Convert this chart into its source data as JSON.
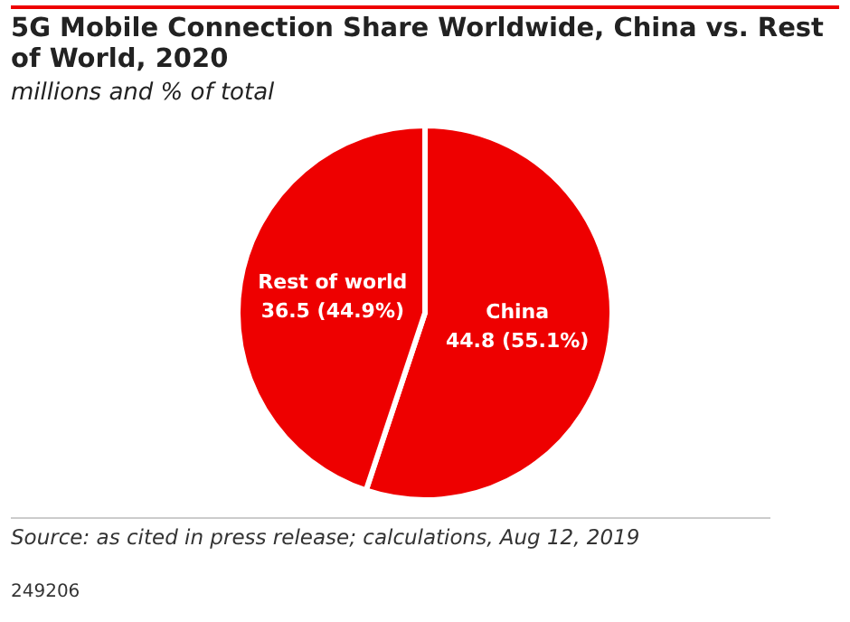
{
  "chart_data": {
    "type": "pie",
    "title": "5G Mobile Connection Share Worldwide, China vs. Rest of World, 2020",
    "subtitle": "millions and % of total",
    "categories": [
      "China",
      "Rest of world"
    ],
    "values": [
      44.8,
      36.5
    ],
    "colors": [
      "#ee0000",
      "#ee0000"
    ],
    "value_labels": [
      "44.8 (55.1%)",
      "36.5 (44.9%)"
    ],
    "legend": false,
    "annotations": [
      "Source: as cited in press release; calculations, Aug 12, 2019",
      "249206"
    ]
  }
}
